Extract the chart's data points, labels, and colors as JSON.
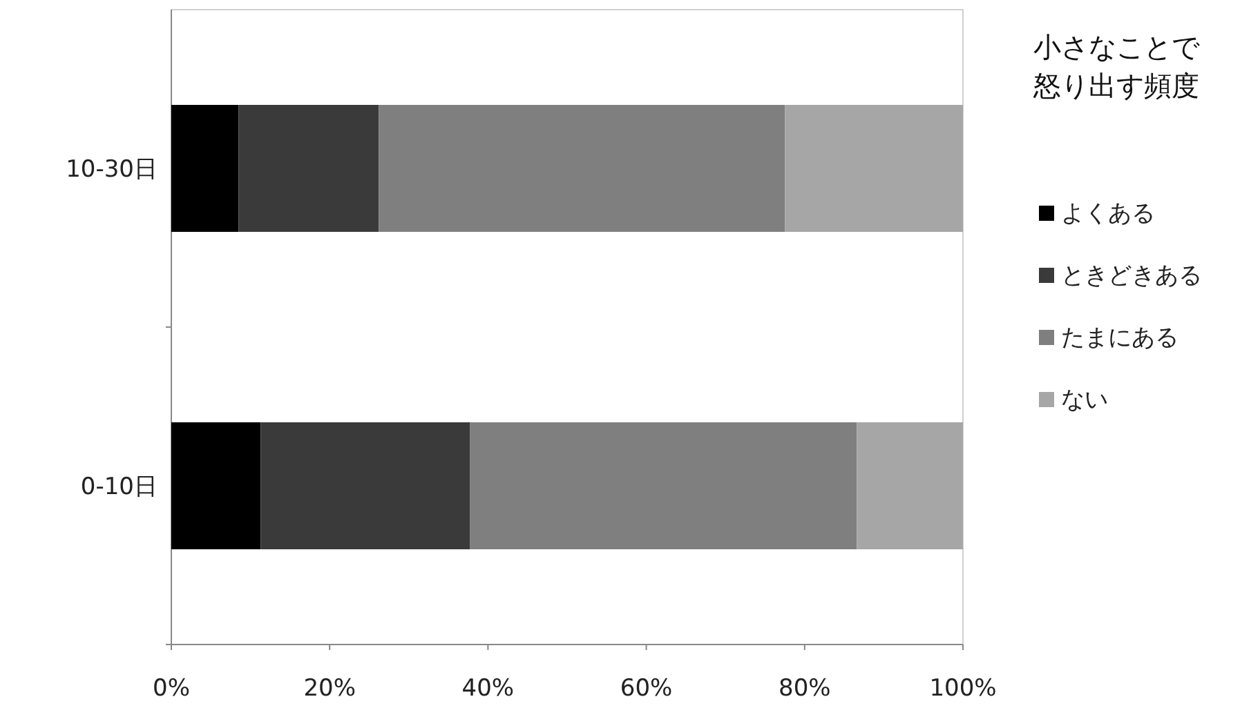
{
  "chart_data": {
    "type": "bar",
    "orientation": "horizontal",
    "stacked": true,
    "categories": [
      "10-30日",
      "0-10日"
    ],
    "legend_title": "小さなことで怒り出す頻度",
    "legend": "right",
    "xlim": [
      0,
      100
    ],
    "xticks": [
      {
        "value": 0,
        "label": "0%"
      },
      {
        "value": 20,
        "label": "20%"
      },
      {
        "value": 40,
        "label": "40%"
      },
      {
        "value": 60,
        "label": "60%"
      },
      {
        "value": 80,
        "label": "80%"
      },
      {
        "value": 100,
        "label": "100%"
      }
    ],
    "grid": false,
    "series": [
      {
        "name": "よくある",
        "color": "#000000",
        "values": [
          8.5,
          11.3
        ]
      },
      {
        "name": "ときどきある",
        "color": "#3a3a3a",
        "values": [
          17.7,
          26.4
        ]
      },
      {
        "name": "たまにある",
        "color": "#7f7f7f",
        "values": [
          51.3,
          48.9
        ]
      },
      {
        "name": "ない",
        "color": "#a6a6a6",
        "values": [
          22.5,
          13.4
        ]
      }
    ]
  }
}
